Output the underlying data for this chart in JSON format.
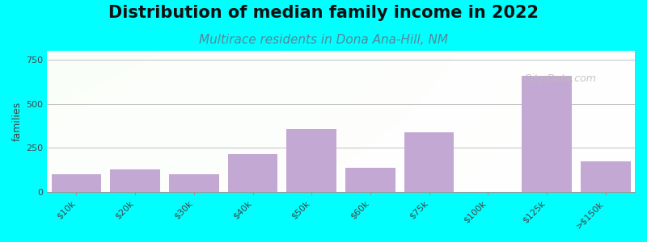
{
  "title": "Distribution of median family income in 2022",
  "subtitle": "Multirace residents in Dona Ana-Hill, NM",
  "ylabel": "families",
  "background_color": "#00FFFF",
  "bar_color": "#C4A8D4",
  "categories": [
    "$10k",
    "$20k",
    "$30k",
    "$40k",
    "$50k",
    "$60k",
    "$75k",
    "$100k",
    "$125k",
    ">$150k"
  ],
  "values": [
    100,
    130,
    100,
    215,
    355,
    135,
    340,
    0,
    660,
    175
  ],
  "ylim": [
    0,
    800
  ],
  "yticks": [
    0,
    250,
    500,
    750
  ],
  "title_fontsize": 15,
  "subtitle_fontsize": 11,
  "subtitle_color": "#558899",
  "watermark": "  City-Data.com",
  "ylabel_fontsize": 9,
  "tick_fontsize": 8
}
